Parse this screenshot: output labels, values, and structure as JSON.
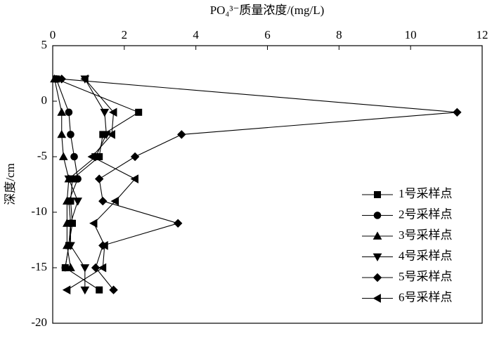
{
  "chart_data": {
    "type": "line",
    "title": "PO₄³⁻质量浓度/(mg/L)",
    "y_label": "深度/cm",
    "y": [
      2,
      -1,
      -3,
      -5,
      -7,
      -9,
      -11,
      -13,
      -15,
      -17
    ],
    "xlim": [
      0,
      12
    ],
    "xticks": [
      0,
      2,
      4,
      6,
      8,
      10,
      12
    ],
    "ylim": [
      5,
      -20
    ],
    "yticks": [
      5,
      0,
      -5,
      -10,
      -15,
      -20
    ],
    "legend": "lower-right",
    "series": [
      {
        "name": "1号采样点",
        "color": "#000000",
        "marker": "square",
        "values": [
          0.1,
          2.4,
          1.4,
          1.3,
          0.55,
          0.5,
          0.55,
          0.45,
          0.35,
          1.3
        ]
      },
      {
        "name": "2号采样点",
        "color": "#000000",
        "marker": "circle",
        "values": [
          0.1,
          0.45,
          0.5,
          0.6,
          0.7,
          0.45,
          0.5,
          0.45,
          0.35,
          null
        ]
      },
      {
        "name": "3号采样点",
        "color": "#000000",
        "marker": "triangle-up",
        "values": [
          0.05,
          0.25,
          0.25,
          0.3,
          0.45,
          0.4,
          0.4,
          0.4,
          0.5,
          null
        ]
      },
      {
        "name": "4号采样点",
        "color": "#000000",
        "marker": "triangle-down",
        "values": [
          0.9,
          1.45,
          1.5,
          1.2,
          0.45,
          0.7,
          0.5,
          0.5,
          0.9,
          0.9
        ]
      },
      {
        "name": "5号采样点",
        "color": "#000000",
        "marker": "diamond",
        "values": [
          0.25,
          11.3,
          3.6,
          2.3,
          1.3,
          1.4,
          3.5,
          1.4,
          1.2,
          1.7
        ]
      },
      {
        "name": "6号采样点",
        "color": "#000000",
        "marker": "triangle-left",
        "values": [
          0.9,
          1.7,
          1.65,
          1.1,
          2.3,
          1.75,
          1.15,
          1.45,
          1.4,
          0.4
        ]
      }
    ]
  }
}
